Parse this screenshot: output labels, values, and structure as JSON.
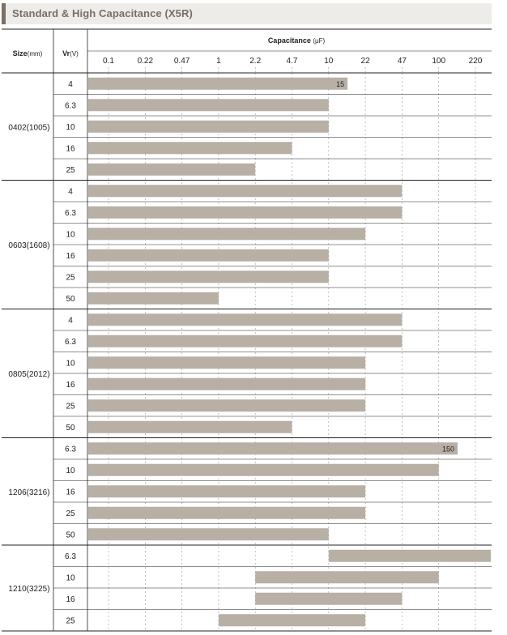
{
  "title": "Standard & High Capacitance (X5R)",
  "header": {
    "size": "Size",
    "size_unit": "(mm)",
    "vr": "Vr",
    "vr_unit": "(V)",
    "capacitance": "Capacitance",
    "cap_unit": "(µF)"
  },
  "chart_data": {
    "type": "bar",
    "orientation": "horizontal",
    "title": "Standard & High Capacitance (X5R)",
    "xlabel": "Capacitance (µF)",
    "ylabel": "Size (mm) / Vr (V)",
    "x_scale": "log-categorical",
    "x_ticks": [
      "0.1",
      "0.22",
      "0.47",
      "1",
      "2.2",
      "4.7",
      "10",
      "22",
      "47",
      "100",
      "220"
    ],
    "groups": [
      {
        "size": "0402(1005)",
        "rows": [
          {
            "vr": "4",
            "min": "0.1",
            "max": "15",
            "label": "15"
          },
          {
            "vr": "6.3",
            "min": "0.1",
            "max": "10"
          },
          {
            "vr": "10",
            "min": "0.1",
            "max": "10"
          },
          {
            "vr": "16",
            "min": "0.1",
            "max": "4.7"
          },
          {
            "vr": "25",
            "min": "0.1",
            "max": "2.2"
          }
        ]
      },
      {
        "size": "0603(1608)",
        "rows": [
          {
            "vr": "4",
            "min": "0.1",
            "max": "47"
          },
          {
            "vr": "6.3",
            "min": "0.1",
            "max": "47"
          },
          {
            "vr": "10",
            "min": "0.1",
            "max": "22"
          },
          {
            "vr": "16",
            "min": "0.1",
            "max": "10"
          },
          {
            "vr": "25",
            "min": "0.1",
            "max": "10"
          },
          {
            "vr": "50",
            "min": "0.1",
            "max": "1"
          }
        ]
      },
      {
        "size": "0805(2012)",
        "rows": [
          {
            "vr": "4",
            "min": "0.1",
            "max": "47"
          },
          {
            "vr": "6.3",
            "min": "0.1",
            "max": "47"
          },
          {
            "vr": "10",
            "min": "0.1",
            "max": "22"
          },
          {
            "vr": "16",
            "min": "0.1",
            "max": "22"
          },
          {
            "vr": "25",
            "min": "0.1",
            "max": "22"
          },
          {
            "vr": "50",
            "min": "0.1",
            "max": "4.7"
          }
        ]
      },
      {
        "size": "1206(3216)",
        "rows": [
          {
            "vr": "6.3",
            "min": "0.1",
            "max": "150",
            "label": "150"
          },
          {
            "vr": "10",
            "min": "0.1",
            "max": "100"
          },
          {
            "vr": "16",
            "min": "0.1",
            "max": "22"
          },
          {
            "vr": "25",
            "min": "0.1",
            "max": "22"
          },
          {
            "vr": "50",
            "min": "0.1",
            "max": "10"
          }
        ]
      },
      {
        "size": "1210(3225)",
        "rows": [
          {
            "vr": "6.3",
            "min": "10",
            "max": "220"
          },
          {
            "vr": "10",
            "min": "2.2",
            "max": "100"
          },
          {
            "vr": "16",
            "min": "2.2",
            "max": "47"
          },
          {
            "vr": "25",
            "min": "1",
            "max": "22"
          }
        ]
      }
    ],
    "bar_color": "#b8afa5",
    "grid": "dashed-vertical"
  }
}
